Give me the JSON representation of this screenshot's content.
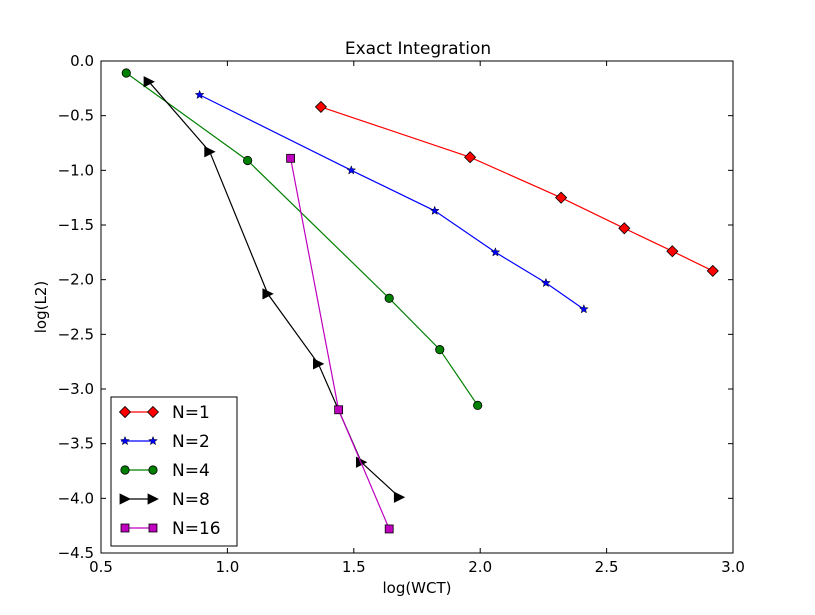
{
  "chart_data": {
    "type": "line",
    "title": "Exact Integration",
    "xlabel": "log(WCT)",
    "ylabel": "log(L2)",
    "xlim": [
      0.5,
      3.0
    ],
    "ylim": [
      -4.5,
      0.0
    ],
    "xticks": [
      0.5,
      1.0,
      1.5,
      2.0,
      2.5,
      3.0
    ],
    "yticks": [
      0.0,
      -0.5,
      -1.0,
      -1.5,
      -2.0,
      -2.5,
      -3.0,
      -3.5,
      -4.0,
      -4.5
    ],
    "grid": false,
    "legend_position": "bottom-left",
    "series": [
      {
        "name": "N=1",
        "color": "#ff0000",
        "marker": "diamond",
        "x": [
          1.37,
          1.96,
          2.32,
          2.57,
          2.76,
          2.92
        ],
        "y": [
          -0.42,
          -0.88,
          -1.25,
          -1.53,
          -1.74,
          -1.92
        ]
      },
      {
        "name": "N=2",
        "color": "#0000ff",
        "marker": "star",
        "x": [
          0.89,
          1.49,
          1.82,
          2.06,
          2.26,
          2.41
        ],
        "y": [
          -0.31,
          -1.0,
          -1.37,
          -1.75,
          -2.03,
          -2.27
        ]
      },
      {
        "name": "N=4",
        "color": "#008000",
        "marker": "circle",
        "x": [
          0.6,
          1.08,
          1.64,
          1.84,
          1.99
        ],
        "y": [
          -0.11,
          -0.91,
          -2.17,
          -2.64,
          -3.15
        ]
      },
      {
        "name": "N=8",
        "color": "#000000",
        "marker": "triangle-right",
        "x": [
          0.69,
          0.93,
          1.16,
          1.36,
          1.53,
          1.68
        ],
        "y": [
          -0.19,
          -0.83,
          -2.13,
          -2.77,
          -3.67,
          -3.99
        ]
      },
      {
        "name": "N=16",
        "color": "#bf00bf",
        "marker": "square",
        "x": [
          1.25,
          1.44,
          1.64
        ],
        "y": [
          -0.89,
          -3.19,
          -4.28
        ]
      }
    ]
  }
}
